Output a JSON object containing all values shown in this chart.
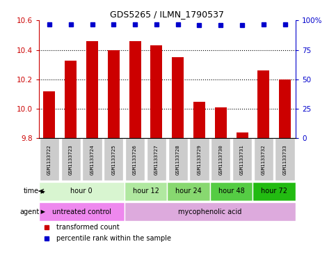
{
  "title": "GDS5265 / ILMN_1790537",
  "samples": [
    "GSM1133722",
    "GSM1133723",
    "GSM1133724",
    "GSM1133725",
    "GSM1133726",
    "GSM1133727",
    "GSM1133728",
    "GSM1133729",
    "GSM1133730",
    "GSM1133731",
    "GSM1133732",
    "GSM1133733"
  ],
  "bar_values": [
    10.12,
    10.33,
    10.46,
    10.4,
    10.46,
    10.43,
    10.35,
    10.05,
    10.01,
    9.84,
    10.26,
    10.2
  ],
  "percentile_values": [
    97,
    97,
    97,
    97,
    97,
    97,
    97,
    96,
    96,
    96,
    97,
    97
  ],
  "bar_color": "#cc0000",
  "dot_color": "#0000cc",
  "ylim_left": [
    9.8,
    10.6
  ],
  "ylim_right": [
    0,
    100
  ],
  "yticks_left": [
    9.8,
    10.0,
    10.2,
    10.4,
    10.6
  ],
  "yticks_right": [
    0,
    25,
    50,
    75,
    100
  ],
  "ytick_labels_right": [
    "0",
    "25",
    "50",
    "75",
    "100%"
  ],
  "time_groups": [
    {
      "label": "hour 0",
      "start": 0,
      "end": 4,
      "color": "#d8f5d0"
    },
    {
      "label": "hour 12",
      "start": 4,
      "end": 6,
      "color": "#b0e8a0"
    },
    {
      "label": "hour 24",
      "start": 6,
      "end": 8,
      "color": "#88d870"
    },
    {
      "label": "hour 48",
      "start": 8,
      "end": 10,
      "color": "#55cc44"
    },
    {
      "label": "hour 72",
      "start": 10,
      "end": 12,
      "color": "#22bb11"
    }
  ],
  "agent_groups": [
    {
      "label": "untreated control",
      "start": 0,
      "end": 4,
      "color": "#ee88ee"
    },
    {
      "label": "mycophenolic acid",
      "start": 4,
      "end": 12,
      "color": "#ddaadd"
    }
  ],
  "legend_items": [
    {
      "label": "transformed count",
      "color": "#cc0000"
    },
    {
      "label": "percentile rank within the sample",
      "color": "#0000cc"
    }
  ],
  "sample_box_color": "#cccccc",
  "baseline": 9.8,
  "bar_width": 0.55
}
